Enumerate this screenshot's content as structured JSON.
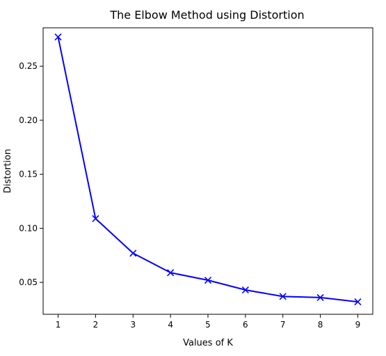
{
  "chart_data": {
    "type": "line",
    "title": "The Elbow Method using Distortion",
    "xlabel": "Values of K",
    "ylabel": "Distortion",
    "xlim": [
      0.6,
      9.4
    ],
    "ylim": [
      0.0205,
      0.2855
    ],
    "xticks": [
      1,
      2,
      3,
      4,
      5,
      6,
      7,
      8,
      9
    ],
    "yticks": [
      0.05,
      0.1,
      0.15,
      0.2,
      0.25
    ],
    "ytick_labels": [
      "0.05",
      "0.10",
      "0.15",
      "0.20",
      "0.25"
    ],
    "grid": false,
    "series": [
      {
        "marker": "x",
        "line_style": "solid",
        "color": "#0000ff",
        "x": [
          1,
          2,
          3,
          4,
          5,
          6,
          7,
          8,
          9
        ],
        "y": [
          0.277,
          0.109,
          0.077,
          0.059,
          0.052,
          0.043,
          0.037,
          0.036,
          0.032
        ]
      }
    ]
  }
}
